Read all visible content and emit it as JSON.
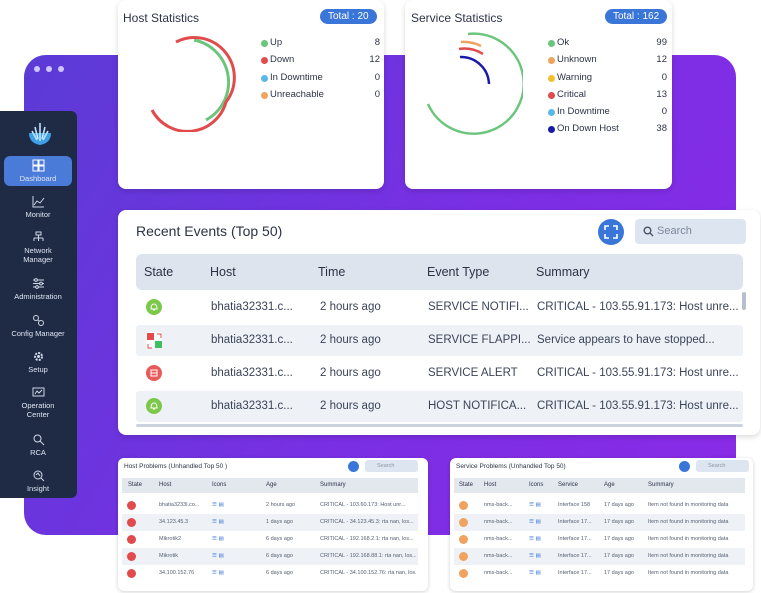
{
  "sidebar": {
    "items": [
      {
        "label": "Dashboard",
        "icon": "dashboard-icon"
      },
      {
        "label": "Monitor",
        "icon": "monitor-icon"
      },
      {
        "label": "Network Manager",
        "icon": "network-icon"
      },
      {
        "label": "Administration",
        "icon": "sliders-icon"
      },
      {
        "label": "Config Manager",
        "icon": "config-icon"
      },
      {
        "label": "Setup",
        "icon": "gear-icon"
      },
      {
        "label": "Operation Center",
        "icon": "operation-icon"
      },
      {
        "label": "RCA",
        "icon": "search-icon"
      },
      {
        "label": "Insight",
        "icon": "insight-icon"
      }
    ]
  },
  "host_stats": {
    "title": "Host Statistics",
    "total": "Total : 20",
    "items": [
      {
        "label": "Up",
        "value": "8",
        "color": "#6cc57c"
      },
      {
        "label": "Down",
        "value": "12",
        "color": "#e14b4b"
      },
      {
        "label": "In Downtime",
        "value": "0",
        "color": "#5ab8e8"
      },
      {
        "label": "Unreachable",
        "value": "0",
        "color": "#f0a35e"
      }
    ]
  },
  "service_stats": {
    "title": "Service Statistics",
    "total": "Total : 162",
    "items": [
      {
        "label": "Ok",
        "value": "99",
        "color": "#6cc57c"
      },
      {
        "label": "Unknown",
        "value": "12",
        "color": "#f0a35e"
      },
      {
        "label": "Warning",
        "value": "0",
        "color": "#f2c12e"
      },
      {
        "label": "Critical",
        "value": "13",
        "color": "#e14b4b"
      },
      {
        "label": "In Downtime",
        "value": "0",
        "color": "#5ab8e8"
      },
      {
        "label": "On Down Host",
        "value": "38",
        "color": "#1a1aa8"
      }
    ]
  },
  "events": {
    "title": "Recent Events (Top 50)",
    "search_placeholder": "Search",
    "columns": [
      "State",
      "Host",
      "Time",
      "Event Type",
      "Summary"
    ],
    "rows": [
      {
        "state": "ok",
        "host": "bhatia32331.c...",
        "time": "2 hours ago",
        "type": "SERVICE NOTIFI...",
        "summary": "CRITICAL - 103.55.91.173: Host unre..."
      },
      {
        "state": "flap",
        "host": "bhatia32331.c...",
        "time": "2 hours ago",
        "type": "SERVICE FLAPPI...",
        "summary": "Service appears to have stopped..."
      },
      {
        "state": "alert",
        "host": "bhatia32331.c...",
        "time": "2 hours ago",
        "type": "SERVICE ALERT",
        "summary": "CRITICAL - 103.55.91.173: Host unre..."
      },
      {
        "state": "ok",
        "host": "bhatia32331.c...",
        "time": "2 hours ago",
        "type": "HOST NOTIFICA...",
        "summary": "CRITICAL - 103.55.91.173: Host unre..."
      }
    ]
  },
  "host_problems": {
    "title": "Host Problems (Unhandled Top 50 )",
    "search_placeholder": "Search",
    "columns": [
      "State",
      "Host",
      "Icons",
      "Age",
      "Summary"
    ],
    "rows": [
      {
        "host": "bhatia3233l.co...",
        "age": "2 hours ago",
        "summary": "CRITICAL - 103.60.173: Host unr..."
      },
      {
        "host": "34.123.45.3",
        "age": "1 days ago",
        "summary": "CRITICAL - 34.123.45.3: rta nan, los..."
      },
      {
        "host": "Mikrotik2",
        "age": "6 days ago",
        "summary": "CRITICAL - 192.168.2.1: rta nan, los..."
      },
      {
        "host": "Mikrotik",
        "age": "6 days ago",
        "summary": "CRITICAL - 192.168.88.1: rta nan, los..."
      },
      {
        "host": "34.100.152.76",
        "age": "6 days ago",
        "summary": "CRITICAL - 34.100.152.76: rta nan, los..."
      }
    ]
  },
  "service_problems": {
    "title": "Service Problems (Unhandled Top 50)",
    "search_placeholder": "Search",
    "columns": [
      "State",
      "Host",
      "Icons",
      "Service",
      "Age",
      "Summary"
    ],
    "rows": [
      {
        "host": "nms-back...",
        "service": "Interface 158",
        "age": "17 days ago",
        "summary": "Item not found in monitoring data"
      },
      {
        "host": "nms-back...",
        "service": "Interface 17...",
        "age": "17 days ago",
        "summary": "Item not found in monitoring data"
      },
      {
        "host": "nms-back...",
        "service": "Interface 17...",
        "age": "17 days ago",
        "summary": "Item not found in monitoring data"
      },
      {
        "host": "nms-back...",
        "service": "Interface 17...",
        "age": "17 days ago",
        "summary": "Item not found in monitoring data"
      },
      {
        "host": "nms-back...",
        "service": "Interface 17...",
        "age": "17 days ago",
        "summary": "Item not found in monitoring data"
      }
    ]
  }
}
